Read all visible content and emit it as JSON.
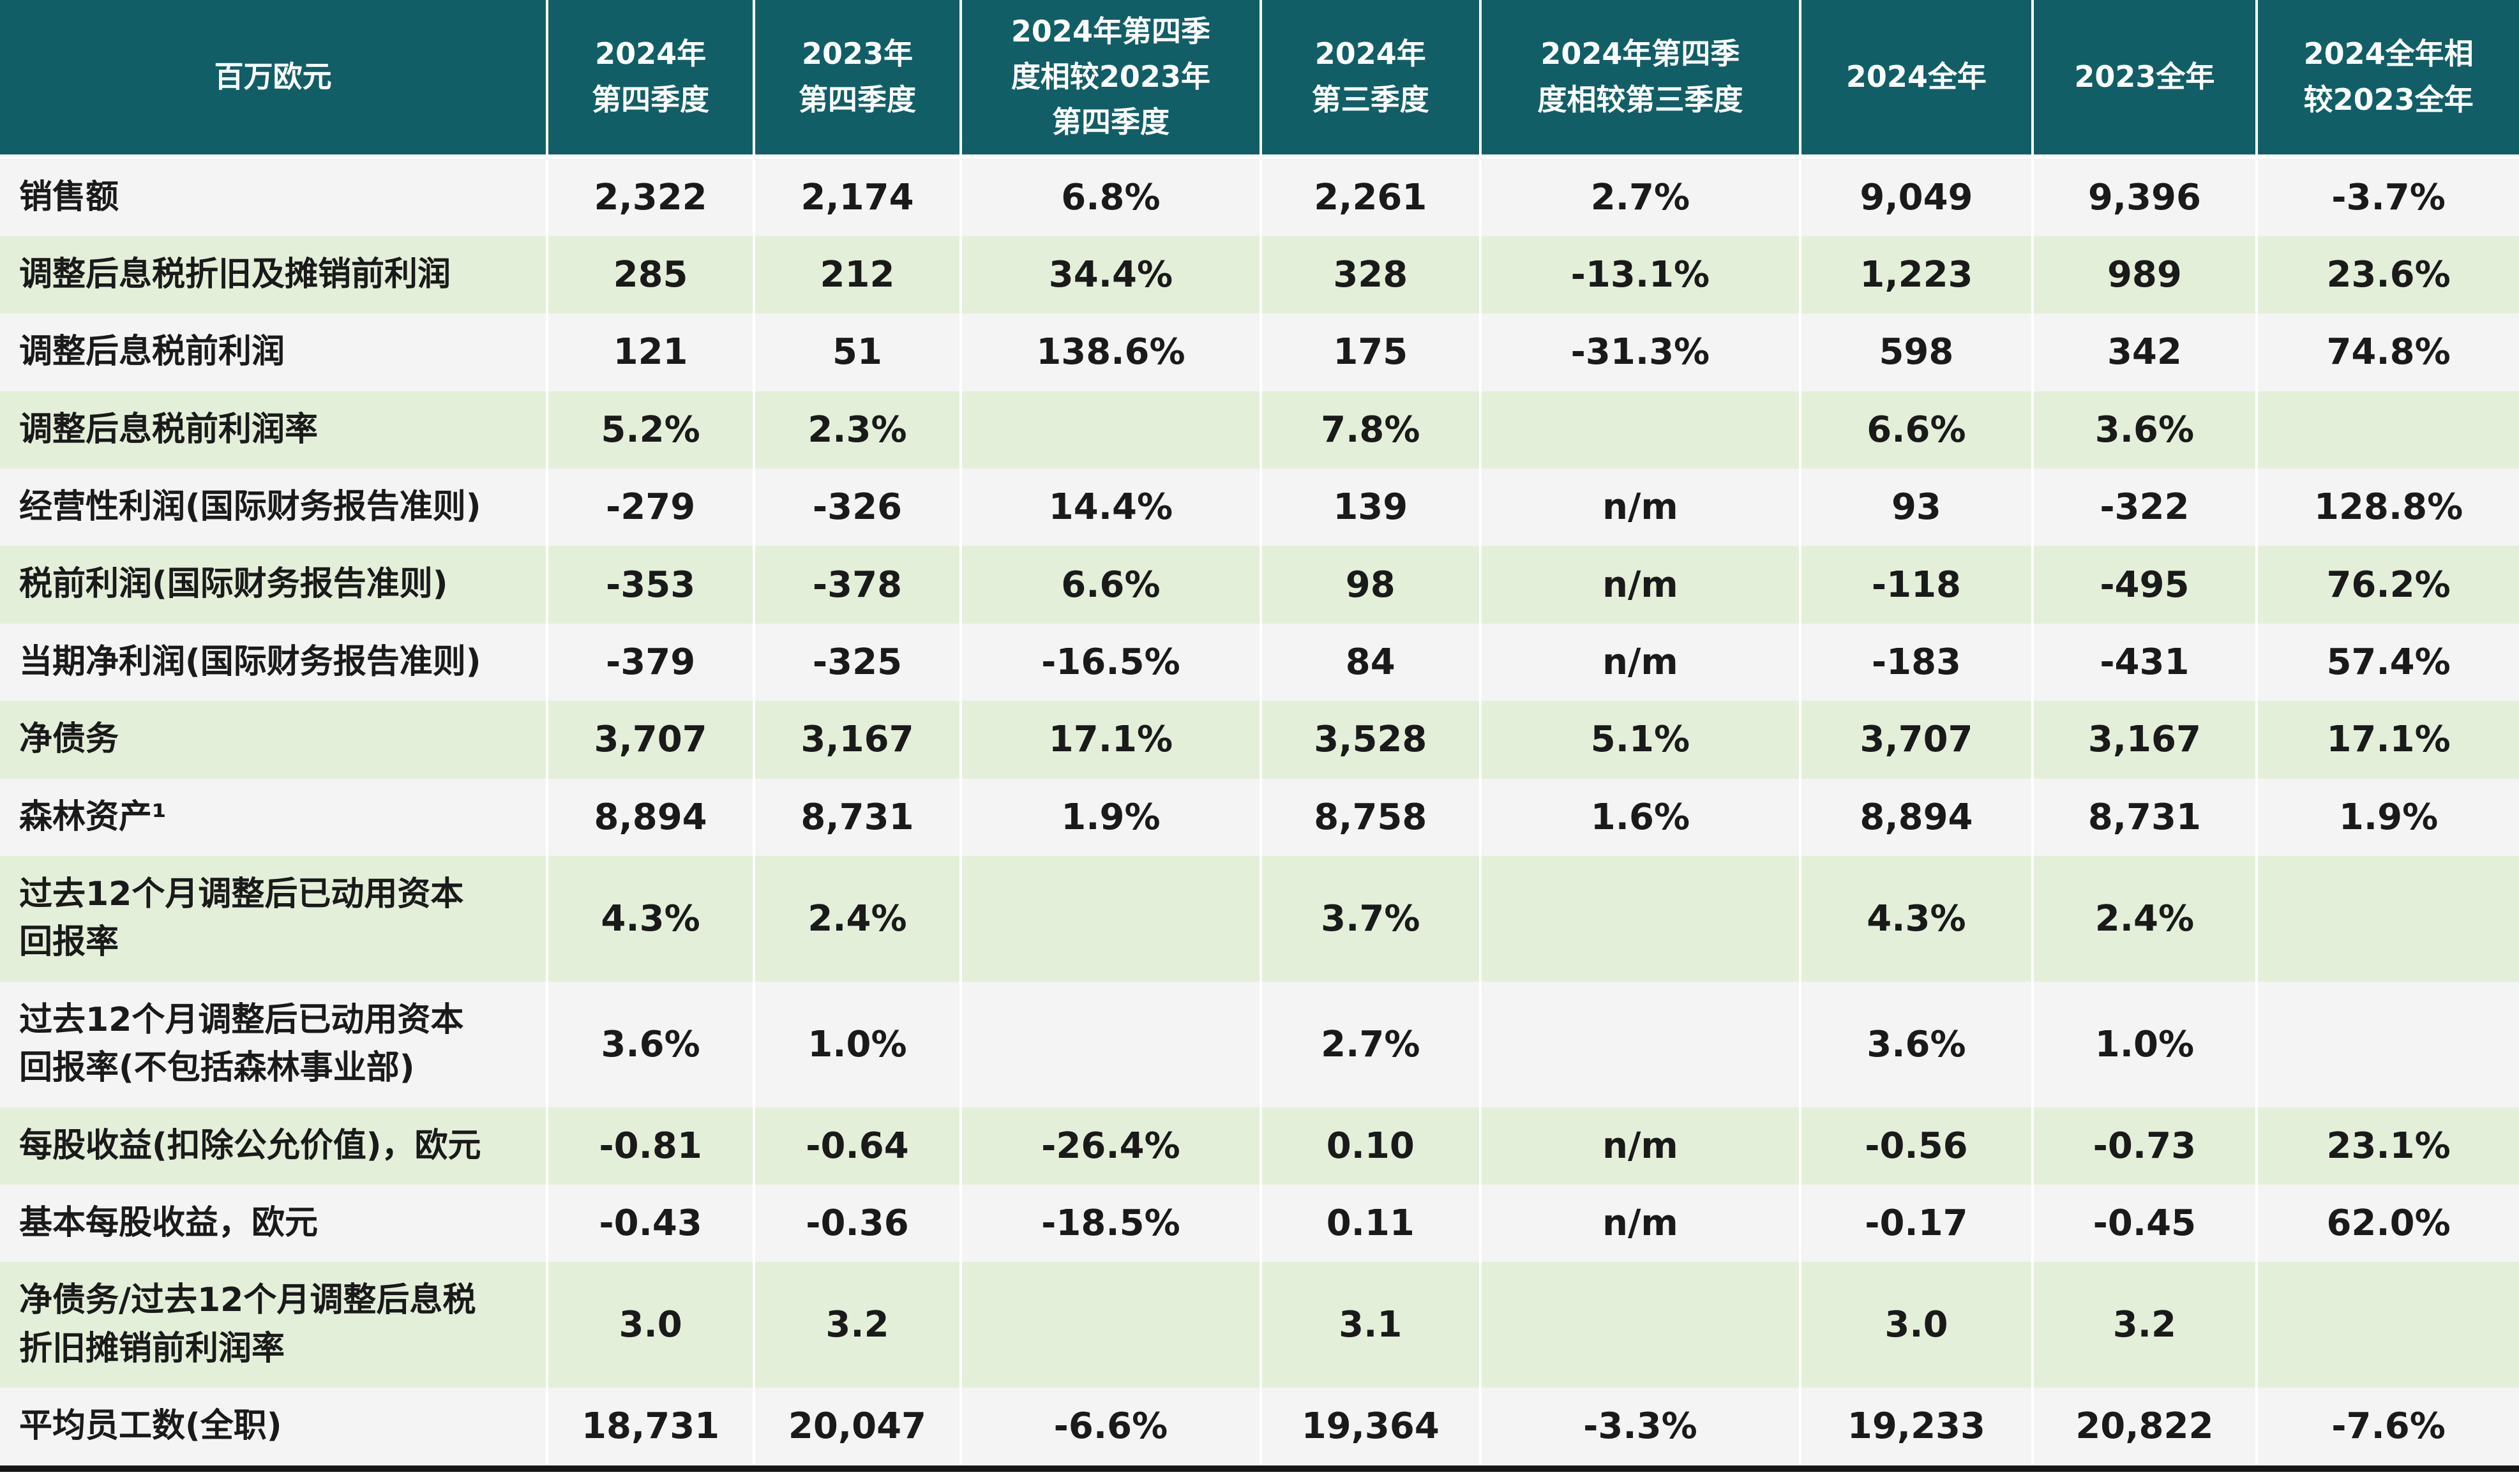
{
  "table": {
    "unit_label": "百万欧元",
    "columns": [
      "2024年\n第四季度",
      "2023年\n第四季度",
      "2024年第四季\n度相较2023年\n第四季度",
      "2024年\n第三季度",
      "2024年第四季\n度相较第三季度",
      "2024全年",
      "2023全年",
      "2024全年相\n较2023全年"
    ],
    "rows": [
      {
        "label": "销售额",
        "values": [
          "2,322",
          "2,174",
          "6.8%",
          "2,261",
          "2.7%",
          "9,049",
          "9,396",
          "-3.7%"
        ]
      },
      {
        "label": "调整后息税折旧及摊销前利润",
        "values": [
          "285",
          "212",
          "34.4%",
          "328",
          "-13.1%",
          "1,223",
          "989",
          "23.6%"
        ]
      },
      {
        "label": "调整后息税前利润",
        "values": [
          "121",
          "51",
          "138.6%",
          "175",
          "-31.3%",
          "598",
          "342",
          "74.8%"
        ]
      },
      {
        "label": "调整后息税前利润率",
        "values": [
          "5.2%",
          "2.3%",
          "",
          "7.8%",
          "",
          "6.6%",
          "3.6%",
          ""
        ]
      },
      {
        "label": "经营性利润(国际财务报告准则)",
        "values": [
          "-279",
          "-326",
          "14.4%",
          "139",
          "n/m",
          "93",
          "-322",
          "128.8%"
        ]
      },
      {
        "label": "税前利润(国际财务报告准则)",
        "values": [
          "-353",
          "-378",
          "6.6%",
          "98",
          "n/m",
          "-118",
          "-495",
          "76.2%"
        ]
      },
      {
        "label": "当期净利润(国际财务报告准则)",
        "values": [
          "-379",
          "-325",
          "-16.5%",
          "84",
          "n/m",
          "-183",
          "-431",
          "57.4%"
        ]
      },
      {
        "label": "净债务",
        "values": [
          "3,707",
          "3,167",
          "17.1%",
          "3,528",
          "5.1%",
          "3,707",
          "3,167",
          "17.1%"
        ]
      },
      {
        "label": "森林资产¹",
        "values": [
          "8,894",
          "8,731",
          "1.9%",
          "8,758",
          "1.6%",
          "8,894",
          "8,731",
          "1.9%"
        ]
      },
      {
        "label": "过去12个月调整后已动用资本\n回报率",
        "values": [
          "4.3%",
          "2.4%",
          "",
          "3.7%",
          "",
          "4.3%",
          "2.4%",
          ""
        ]
      },
      {
        "label": "过去12个月调整后已动用资本\n回报率(不包括森林事业部)",
        "values": [
          "3.6%",
          "1.0%",
          "",
          "2.7%",
          "",
          "3.6%",
          "1.0%",
          ""
        ]
      },
      {
        "label": "每股收益(扣除公允价值)，欧元",
        "values": [
          "-0.81",
          "-0.64",
          "-26.4%",
          "0.10",
          "n/m",
          "-0.56",
          "-0.73",
          "23.1%"
        ]
      },
      {
        "label": "基本每股收益，欧元",
        "values": [
          "-0.43",
          "-0.36",
          "-18.5%",
          "0.11",
          "n/m",
          "-0.17",
          "-0.45",
          "62.0%"
        ]
      },
      {
        "label": "净债务/过去12个月调整后息税\n折旧摊销前利润率",
        "values": [
          "3.0",
          "3.2",
          "",
          "3.1",
          "",
          "3.0",
          "3.2",
          ""
        ]
      },
      {
        "label": "平均员工数(全职)",
        "values": [
          "18,731",
          "20,047",
          "-6.6%",
          "19,364",
          "-3.3%",
          "19,233",
          "20,822",
          "-7.6%"
        ]
      }
    ]
  },
  "colors": {
    "header_bg": "#115e67",
    "header_text": "#ffffff",
    "row_alt_green": "#e4efda",
    "row_alt_gray": "#f4f4f4",
    "text": "#1a1a1a",
    "bottom_border": "#161616"
  }
}
